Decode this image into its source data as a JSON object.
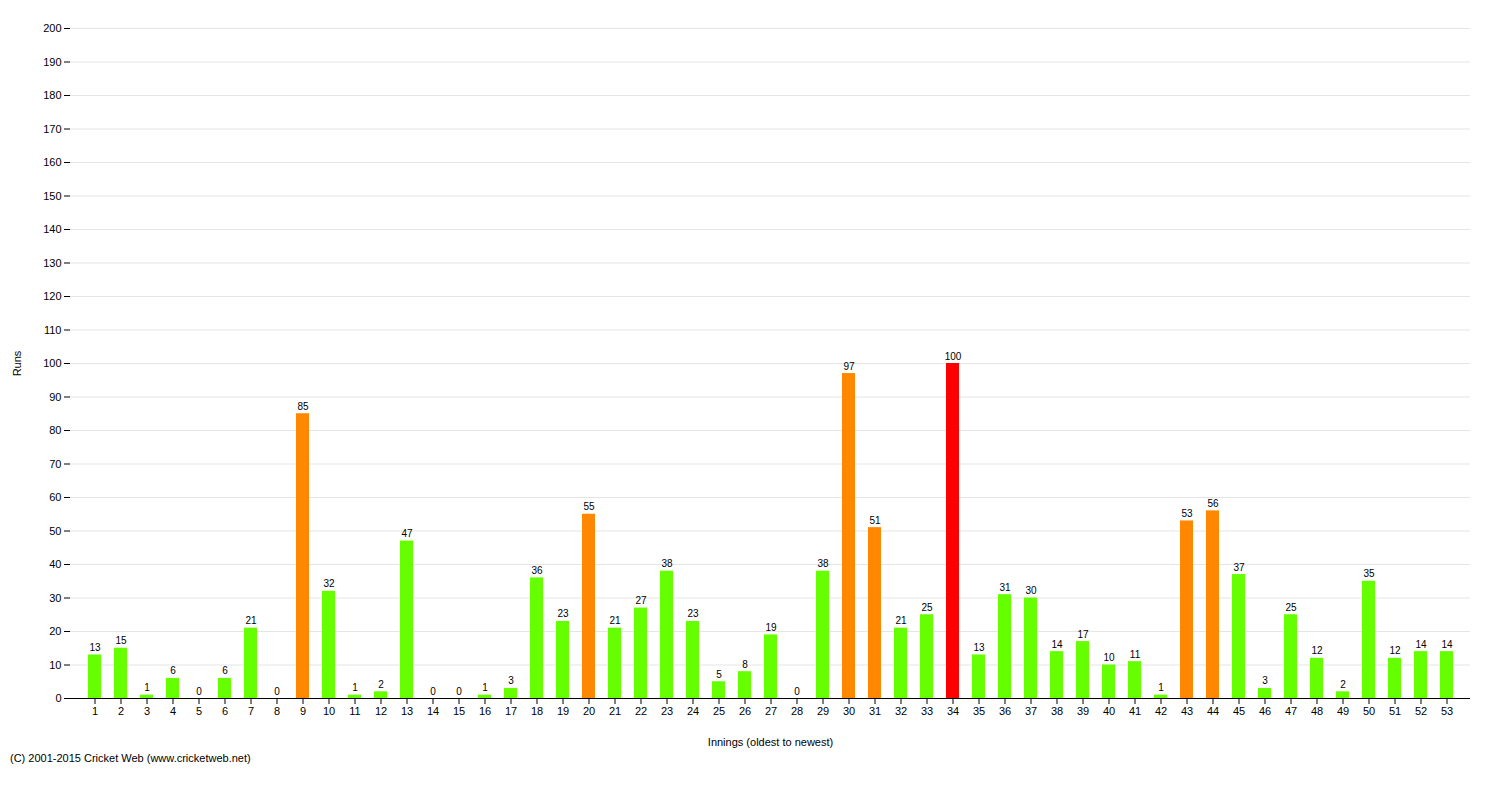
{
  "chart_data": {
    "type": "bar",
    "categories": [
      "1",
      "2",
      "3",
      "4",
      "5",
      "6",
      "7",
      "8",
      "9",
      "10",
      "11",
      "12",
      "13",
      "14",
      "15",
      "16",
      "17",
      "18",
      "19",
      "20",
      "21",
      "22",
      "23",
      "24",
      "25",
      "26",
      "27",
      "28",
      "29",
      "30",
      "31",
      "32",
      "33",
      "34",
      "35",
      "36",
      "37",
      "38",
      "39",
      "40",
      "41",
      "42",
      "43",
      "44",
      "45",
      "46",
      "47",
      "48",
      "49",
      "50",
      "51",
      "52",
      "53"
    ],
    "values": [
      13,
      15,
      1,
      6,
      0,
      6,
      21,
      0,
      85,
      32,
      1,
      2,
      47,
      0,
      0,
      1,
      3,
      36,
      23,
      55,
      21,
      27,
      38,
      23,
      5,
      8,
      19,
      0,
      38,
      97,
      51,
      21,
      25,
      100,
      13,
      31,
      30,
      14,
      17,
      10,
      11,
      1,
      53,
      56,
      37,
      3,
      25,
      12,
      2,
      35,
      12,
      14,
      14
    ],
    "colors": [
      "#66ff00",
      "#66ff00",
      "#66ff00",
      "#66ff00",
      "#66ff00",
      "#66ff00",
      "#66ff00",
      "#66ff00",
      "#ff8800",
      "#66ff00",
      "#66ff00",
      "#66ff00",
      "#66ff00",
      "#66ff00",
      "#66ff00",
      "#66ff00",
      "#66ff00",
      "#66ff00",
      "#66ff00",
      "#ff8800",
      "#66ff00",
      "#66ff00",
      "#66ff00",
      "#66ff00",
      "#66ff00",
      "#66ff00",
      "#66ff00",
      "#66ff00",
      "#66ff00",
      "#ff8800",
      "#ff8800",
      "#66ff00",
      "#66ff00",
      "#ff0000",
      "#66ff00",
      "#66ff00",
      "#66ff00",
      "#66ff00",
      "#66ff00",
      "#66ff00",
      "#66ff00",
      "#66ff00",
      "#ff8800",
      "#ff8800",
      "#66ff00",
      "#66ff00",
      "#66ff00",
      "#66ff00",
      "#66ff00",
      "#66ff00",
      "#66ff00",
      "#66ff00",
      "#66ff00"
    ],
    "xlabel": "Innings (oldest to newest)",
    "ylabel": "Runs",
    "ylim": [
      0,
      200
    ],
    "yticks": [
      0,
      10,
      20,
      30,
      40,
      50,
      60,
      70,
      80,
      90,
      100,
      110,
      120,
      130,
      140,
      150,
      160,
      170,
      180,
      190,
      200
    ],
    "grid": true,
    "data_labels": true,
    "annotations": [
      "(C) 2001-2015 Cricket Web (www.cricketweb.net)"
    ]
  }
}
